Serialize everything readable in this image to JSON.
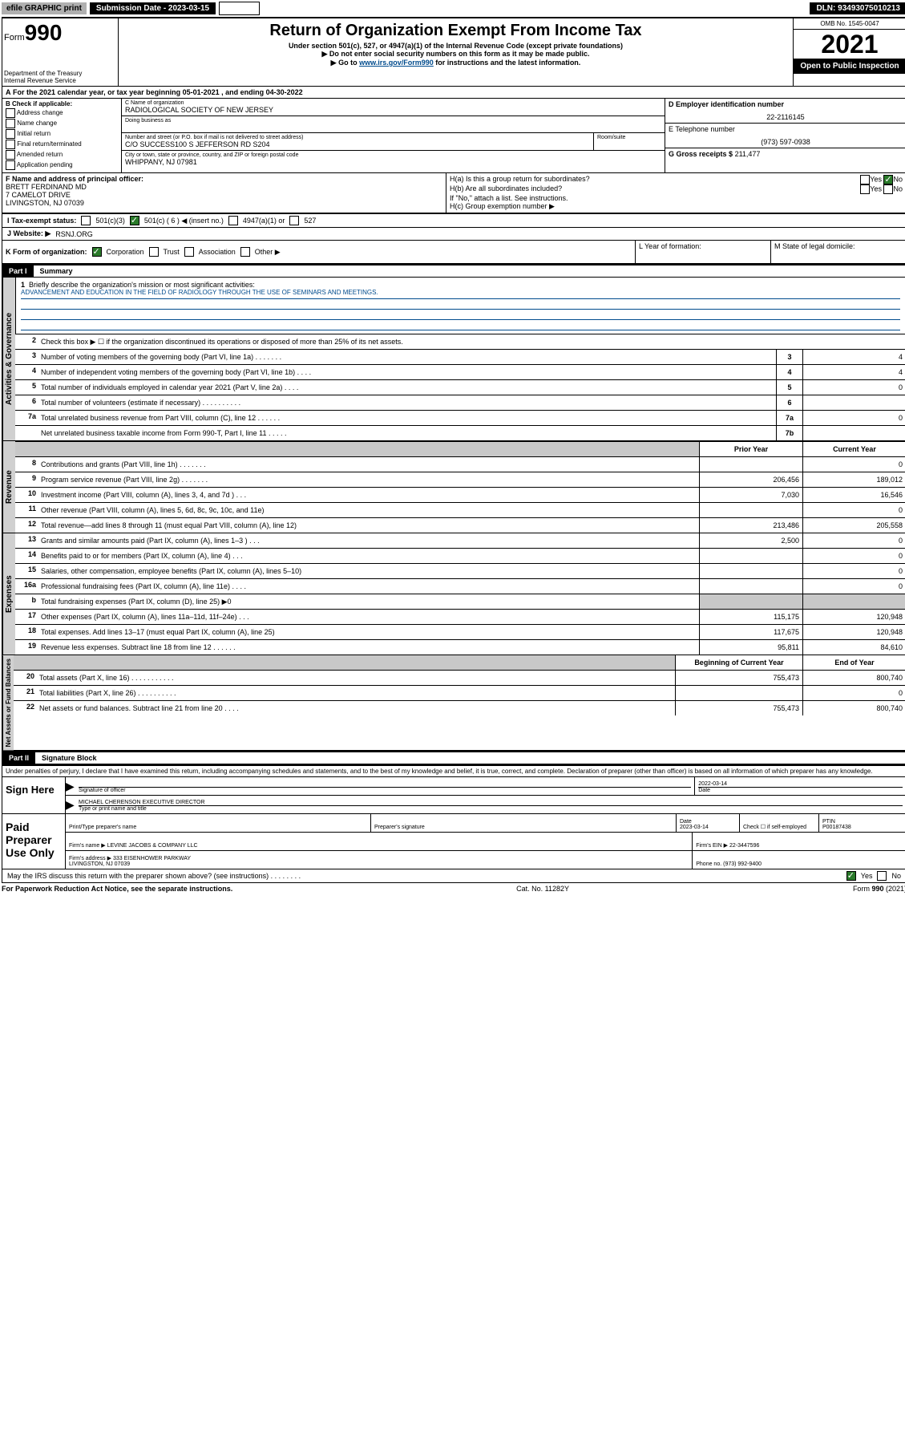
{
  "top": {
    "efile": "efile GRAPHIC print",
    "sub_label": "Submission Date - 2023-03-15",
    "dln": "DLN: 93493075010213"
  },
  "header": {
    "form_prefix": "Form",
    "form_num": "990",
    "title": "Return of Organization Exempt From Income Tax",
    "subtitle": "Under section 501(c), 527, or 4947(a)(1) of the Internal Revenue Code (except private foundations)",
    "note1": "▶ Do not enter social security numbers on this form as it may be made public.",
    "note2_pre": "▶ Go to ",
    "note2_link": "www.irs.gov/Form990",
    "note2_post": " for instructions and the latest information.",
    "dept": "Department of the Treasury",
    "irs": "Internal Revenue Service",
    "omb": "OMB No. 1545-0047",
    "year": "2021",
    "open": "Open to Public Inspection"
  },
  "line_a": "For the 2021 calendar year, or tax year beginning 05-01-2021   , and ending 04-30-2022",
  "box_b": {
    "label": "B Check if applicable:",
    "items": [
      "Address change",
      "Name change",
      "Initial return",
      "Final return/terminated",
      "Amended return",
      "Application pending"
    ]
  },
  "box_c": {
    "name_label": "C Name of organization",
    "name": "RADIOLOGICAL SOCIETY OF NEW JERSEY",
    "dba_label": "Doing business as",
    "dba": "",
    "addr_label": "Number and street (or P.O. box if mail is not delivered to street address)",
    "room_label": "Room/suite",
    "addr": "C/O SUCCESS100 S JEFFERSON RD S204",
    "city_label": "City or town, state or province, country, and ZIP or foreign postal code",
    "city": "WHIPPANY, NJ  07981"
  },
  "box_d": {
    "label": "D Employer identification number",
    "ein": "22-2116145"
  },
  "box_e": {
    "label": "E Telephone number",
    "phone": "(973) 597-0938"
  },
  "box_g": {
    "label": "G Gross receipts $",
    "amount": "211,477"
  },
  "box_f": {
    "label": "F Name and address of principal officer:",
    "name": "BRETT FERDINAND MD",
    "addr1": "7 CAMELOT DRIVE",
    "addr2": "LIVINGSTON, NJ  07039"
  },
  "box_h": {
    "a": "H(a)  Is this a group return for subordinates?",
    "b": "H(b)  Are all subordinates included?",
    "note": "If \"No,\" attach a list. See instructions.",
    "c": "H(c)  Group exemption number ▶"
  },
  "box_i": {
    "label": "I   Tax-exempt status:",
    "o1": "501(c)(3)",
    "o2": "501(c) ( 6 ) ◀ (insert no.)",
    "o3": "4947(a)(1) or",
    "o4": "527"
  },
  "box_j": {
    "label": "J   Website: ▶",
    "val": "RSNJ.ORG"
  },
  "box_k": {
    "label": "K Form of organization:",
    "opts": [
      "Corporation",
      "Trust",
      "Association",
      "Other ▶"
    ]
  },
  "box_l": "L Year of formation:",
  "box_m": "M State of legal domicile:",
  "part1": {
    "header": "Part I",
    "title": "Summary",
    "q1_label": "Briefly describe the organization's mission or most significant activities:",
    "q1_text": "ADVANCEMENT AND EDUCATION IN THE FIELD OF RADIOLOGY THROUGH THE USE OF SEMINARS AND MEETINGS.",
    "q2": "Check this box ▶ ☐  if the organization discontinued its operations or disposed of more than 25% of its net assets.",
    "prior_hdr": "Prior Year",
    "curr_hdr": "Current Year",
    "boy_hdr": "Beginning of Current Year",
    "eoy_hdr": "End of Year",
    "rows_top": [
      {
        "n": "3",
        "t": "Number of voting members of the governing body (Part VI, line 1a)  .    .    .    .    .    .    .",
        "rn": "3",
        "v": "4"
      },
      {
        "n": "4",
        "t": "Number of independent voting members of the governing body (Part VI, line 1b)  .    .    .    .",
        "rn": "4",
        "v": "4"
      },
      {
        "n": "5",
        "t": "Total number of individuals employed in calendar year 2021 (Part V, line 2a)  .    .    .    .",
        "rn": "5",
        "v": "0"
      },
      {
        "n": "6",
        "t": "Total number of volunteers (estimate if necessary)  .    .    .    .    .    .    .    .    .    .",
        "rn": "6",
        "v": ""
      },
      {
        "n": "7a",
        "t": "Total unrelated business revenue from Part VIII, column (C), line 12  .    .    .    .    .    .",
        "rn": "7a",
        "v": "0"
      },
      {
        "n": "",
        "t": "Net unrelated business taxable income from Form 990-T, Part I, line 11  .    .    .    .    .",
        "rn": "7b",
        "v": ""
      }
    ],
    "rows_rev": [
      {
        "n": "8",
        "t": "Contributions and grants (Part VIII, line 1h)   .    .    .    .    .    .    .",
        "p": "",
        "c": "0"
      },
      {
        "n": "9",
        "t": "Program service revenue (Part VIII, line 2g)   .    .    .    .    .    .    .",
        "p": "206,456",
        "c": "189,012"
      },
      {
        "n": "10",
        "t": "Investment income (Part VIII, column (A), lines 3, 4, and 7d )   .    .    .",
        "p": "7,030",
        "c": "16,546"
      },
      {
        "n": "11",
        "t": "Other revenue (Part VIII, column (A), lines 5, 6d, 8c, 9c, 10c, and 11e)",
        "p": "",
        "c": "0"
      },
      {
        "n": "12",
        "t": "Total revenue—add lines 8 through 11 (must equal Part VIII, column (A), line 12)",
        "p": "213,486",
        "c": "205,558"
      }
    ],
    "rows_exp": [
      {
        "n": "13",
        "t": "Grants and similar amounts paid (Part IX, column (A), lines 1–3 )   .    .    .",
        "p": "2,500",
        "c": "0"
      },
      {
        "n": "14",
        "t": "Benefits paid to or for members (Part IX, column (A), line 4)   .    .    .",
        "p": "",
        "c": "0"
      },
      {
        "n": "15",
        "t": "Salaries, other compensation, employee benefits (Part IX, column (A), lines 5–10)",
        "p": "",
        "c": "0"
      },
      {
        "n": "16a",
        "t": "Professional fundraising fees (Part IX, column (A), line 11e)   .    .    .    .",
        "p": "",
        "c": "0"
      },
      {
        "n": "b",
        "t": "Total fundraising expenses (Part IX, column (D), line 25) ▶0",
        "p": "",
        "c": "",
        "shade": true
      },
      {
        "n": "17",
        "t": "Other expenses (Part IX, column (A), lines 11a–11d, 11f–24e)   .    .    .",
        "p": "115,175",
        "c": "120,948"
      },
      {
        "n": "18",
        "t": "Total expenses. Add lines 13–17 (must equal Part IX, column (A), line 25)",
        "p": "117,675",
        "c": "120,948"
      },
      {
        "n": "19",
        "t": "Revenue less expenses. Subtract line 18 from line 12    .    .    .    .    .    .",
        "p": "95,811",
        "c": "84,610"
      }
    ],
    "rows_net": [
      {
        "n": "20",
        "t": "Total assets (Part X, line 16)   .    .    .    .    .    .    .    .    .    .    .",
        "p": "755,473",
        "c": "800,740"
      },
      {
        "n": "21",
        "t": "Total liabilities (Part X, line 26)   .    .    .    .    .    .    .    .    .    .",
        "p": "",
        "c": "0"
      },
      {
        "n": "22",
        "t": "Net assets or fund balances. Subtract line 21 from line 20   .    .    .    .",
        "p": "755,473",
        "c": "800,740"
      }
    ]
  },
  "part2": {
    "header": "Part II",
    "title": "Signature Block",
    "decl": "Under penalties of perjury, I declare that I have examined this return, including accompanying schedules and statements, and to the best of my knowledge and belief, it is true, correct, and complete. Declaration of preparer (other than officer) is based on all information of which preparer has any knowledge."
  },
  "sign": {
    "label": "Sign Here",
    "sig_label": "Signature of officer",
    "date_label": "Date",
    "date": "2022-03-14",
    "name": "MICHAEL CHERENSON  EXECUTIVE DIRECTOR",
    "name_label": "Type or print name and title"
  },
  "paid": {
    "label": "Paid Preparer Use Only",
    "pt_label": "Print/Type preparer's name",
    "sig_label": "Preparer's signature",
    "date_label": "Date",
    "date": "2023-03-14",
    "check_label": "Check ☐ if self-employed",
    "ptin_label": "PTIN",
    "ptin": "P00187438",
    "firm_name_label": "Firm's name    ▶",
    "firm_name": "LEVINE JACOBS & COMPANY LLC",
    "ein_label": "Firm's EIN ▶",
    "ein": "22-3447596",
    "firm_addr_label": "Firm's address ▶",
    "firm_addr1": "333 EISENHOWER PARKWAY",
    "firm_addr2": "LIVINGSTON, NJ  07039",
    "phone_label": "Phone no.",
    "phone": "(973) 992-9400"
  },
  "discuss": "May the IRS discuss this return with the preparer shown above? (see instructions)   .    .    .    .    .    .    .    .",
  "footer": {
    "left": "For Paperwork Reduction Act Notice, see the separate instructions.",
    "mid": "Cat. No. 11282Y",
    "right": "Form 990 (2021)"
  },
  "vert_labels": {
    "gov": "Activities & Governance",
    "rev": "Revenue",
    "exp": "Expenses",
    "net": "Net Assets or Fund Balances"
  }
}
